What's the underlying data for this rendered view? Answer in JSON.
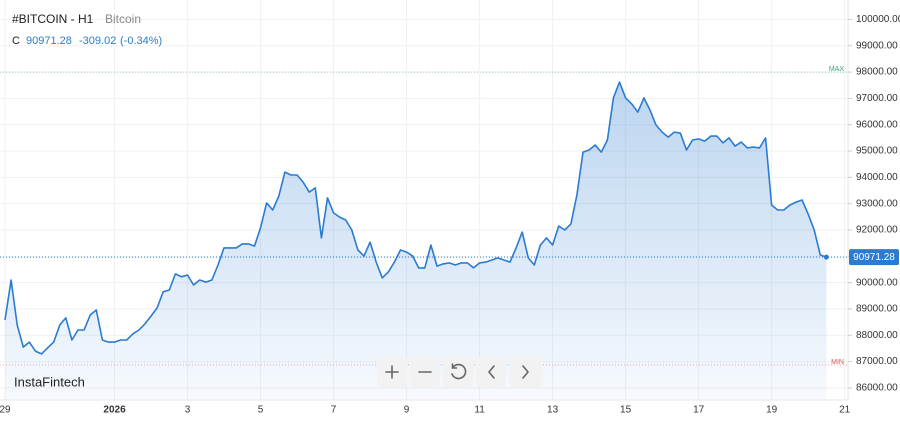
{
  "chart_data": {
    "type": "area",
    "title": "#BITCOIN - H1",
    "subtitle": "Bitcoin",
    "close_prefix": "C",
    "close": 90971.28,
    "change": -309.02,
    "change_pct": "(-0.34%)",
    "brand": "InstaFintech",
    "color": "#2b7bd0",
    "grid": true,
    "max_line": {
      "label": "MAX",
      "value": 98000,
      "color": "#3aa76d"
    },
    "min_line": {
      "label": "MIN",
      "value": 86870,
      "color": "#e05555"
    },
    "xlim": [
      -3.29,
      554.2
    ],
    "ylim": [
      85540,
      100740
    ],
    "xticks": [
      {
        "value": 0,
        "label": "29"
      },
      {
        "value": 72,
        "label": "2026"
      },
      {
        "value": 120,
        "label": "3"
      },
      {
        "value": 168,
        "label": "5"
      },
      {
        "value": 216,
        "label": "7"
      },
      {
        "value": 264,
        "label": "9"
      },
      {
        "value": 312,
        "label": "11"
      },
      {
        "value": 360,
        "label": "13"
      },
      {
        "value": 408,
        "label": "15"
      },
      {
        "value": 456,
        "label": "17"
      },
      {
        "value": 504,
        "label": "19"
      },
      {
        "value": 552,
        "label": "21"
      }
    ],
    "yticks": [
      {
        "value": 86000,
        "label": "86000.00"
      },
      {
        "value": 87000,
        "label": "87000.00"
      },
      {
        "value": 88000,
        "label": "88000.00"
      },
      {
        "value": 89000,
        "label": "89000.00"
      },
      {
        "value": 90000,
        "label": "90000.00"
      },
      {
        "value": 91000,
        "label": "91000.00"
      },
      {
        "value": 92000,
        "label": "92000.00"
      },
      {
        "value": 93000,
        "label": "93000.00"
      },
      {
        "value": 94000,
        "label": "94000.00"
      },
      {
        "value": 95000,
        "label": "95000.00"
      },
      {
        "value": 96000,
        "label": "96000.00"
      },
      {
        "value": 97000,
        "label": "97000.00"
      },
      {
        "value": 98000,
        "label": "98000.00"
      },
      {
        "value": 99000,
        "label": "99000.00"
      },
      {
        "value": 100000,
        "label": "100000.00"
      }
    ],
    "series": [
      {
        "name": "Bitcoin",
        "x": [
          0,
          4,
          8,
          12,
          16,
          20,
          24,
          28,
          32,
          36,
          40,
          44,
          48,
          52,
          56,
          60,
          64,
          68,
          72,
          76,
          80,
          84,
          88,
          92,
          96,
          100,
          104,
          108,
          112,
          116,
          120,
          124,
          128,
          132,
          136,
          140,
          144,
          148,
          152,
          156,
          160,
          164,
          168,
          172,
          176,
          180,
          184,
          188,
          192,
          196,
          200,
          204,
          208,
          212,
          216,
          220,
          224,
          228,
          232,
          236,
          240,
          244,
          248,
          252,
          256,
          260,
          264,
          268,
          272,
          276,
          280,
          284,
          288,
          292,
          296,
          300,
          304,
          308,
          312,
          316,
          320,
          324,
          328,
          332,
          336,
          340,
          344,
          348,
          352,
          356,
          360,
          364,
          368,
          372,
          376,
          380,
          384,
          388,
          392,
          396,
          400,
          404,
          408,
          412,
          416,
          420,
          424,
          428,
          432,
          436,
          440,
          444,
          448,
          452,
          456,
          460,
          464,
          468,
          472,
          476,
          480,
          484,
          488,
          492,
          496,
          500,
          504,
          508,
          512,
          516,
          520,
          524,
          528,
          532,
          536,
          540
        ],
        "values": [
          88580,
          90100,
          88390,
          87550,
          87740,
          87400,
          87290,
          87520,
          87740,
          88390,
          88660,
          87820,
          88200,
          88200,
          88770,
          88960,
          87820,
          87740,
          87740,
          87820,
          87820,
          88050,
          88200,
          88430,
          88730,
          89040,
          89650,
          89720,
          90330,
          90220,
          90290,
          89910,
          90100,
          90020,
          90100,
          90670,
          91320,
          91320,
          91320,
          91470,
          91470,
          91390,
          92080,
          93030,
          92760,
          93290,
          94200,
          94090,
          94090,
          93820,
          93440,
          93600,
          91700,
          93220,
          92650,
          92490,
          92380,
          92000,
          91240,
          91010,
          91540,
          90780,
          90180,
          90400,
          90780,
          91240,
          91160,
          91010,
          90560,
          90560,
          91430,
          90630,
          90710,
          90750,
          90670,
          90750,
          90750,
          90560,
          90750,
          90780,
          90860,
          90940,
          90860,
          90780,
          91320,
          91920,
          90940,
          90670,
          91430,
          91700,
          91430,
          92150,
          92000,
          92230,
          93330,
          94960,
          95040,
          95230,
          94960,
          95420,
          97020,
          97620,
          97020,
          96790,
          96480,
          97020,
          96560,
          95990,
          95720,
          95530,
          95720,
          95680,
          95040,
          95420,
          95460,
          95380,
          95570,
          95570,
          95310,
          95500,
          95190,
          95340,
          95120,
          95150,
          95120,
          95500,
          92950,
          92760,
          92760,
          92950,
          93060,
          93140,
          92610,
          92000,
          91050,
          90970
        ]
      }
    ]
  }
}
